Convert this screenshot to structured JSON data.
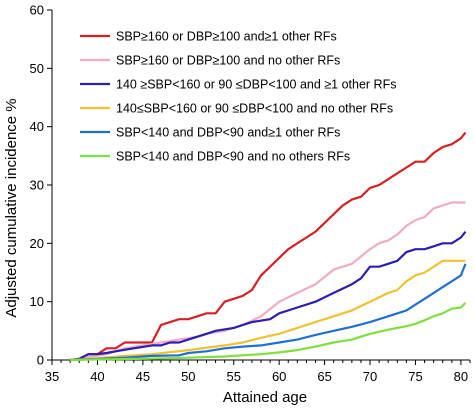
{
  "chart_data": {
    "type": "line",
    "title": "",
    "xlabel": "Attained age",
    "ylabel": "Adjusted cumulative incidence %",
    "xlim": [
      35,
      81
    ],
    "ylim": [
      0,
      60
    ],
    "x_ticks": [
      "35",
      "40",
      "45",
      "50",
      "55",
      "60",
      "65",
      "70",
      "75",
      "80"
    ],
    "y_ticks": [
      "0",
      "10",
      "20",
      "30",
      "40",
      "50",
      "60"
    ],
    "grid": false,
    "legend_position": "top-left",
    "series": [
      {
        "name": "SBP≥160 or DBP≥100 and≥1 other RFs",
        "color": "#d62020",
        "points": [
          [
            37,
            0
          ],
          [
            38,
            0.2
          ],
          [
            39,
            1
          ],
          [
            40,
            1
          ],
          [
            41,
            2
          ],
          [
            42,
            2
          ],
          [
            43,
            3
          ],
          [
            45,
            3
          ],
          [
            46,
            3
          ],
          [
            47,
            6
          ],
          [
            48,
            6.5
          ],
          [
            49,
            7
          ],
          [
            50,
            7
          ],
          [
            51,
            7.5
          ],
          [
            52,
            8
          ],
          [
            53,
            8
          ],
          [
            54,
            10
          ],
          [
            55,
            10.5
          ],
          [
            56,
            11
          ],
          [
            57,
            12
          ],
          [
            58,
            14.5
          ],
          [
            59,
            16
          ],
          [
            60,
            17.5
          ],
          [
            61,
            19
          ],
          [
            62,
            20
          ],
          [
            63,
            21
          ],
          [
            64,
            22
          ],
          [
            65,
            23.5
          ],
          [
            66,
            25
          ],
          [
            67,
            26.5
          ],
          [
            68,
            27.5
          ],
          [
            69,
            28
          ],
          [
            70,
            29.5
          ],
          [
            71,
            30
          ],
          [
            72,
            31
          ],
          [
            73,
            32
          ],
          [
            74,
            33
          ],
          [
            75,
            34
          ],
          [
            76,
            34
          ],
          [
            77,
            35.5
          ],
          [
            78,
            36.5
          ],
          [
            79,
            37
          ],
          [
            80,
            38
          ],
          [
            80.5,
            39
          ]
        ]
      },
      {
        "name": "SBP≥160 or DBP≥100 and no other RFs",
        "color": "#f4a9c4",
        "points": [
          [
            37,
            0
          ],
          [
            39,
            0.5
          ],
          [
            41,
            1
          ],
          [
            43,
            2
          ],
          [
            45,
            2.5
          ],
          [
            47,
            3
          ],
          [
            49,
            3.5
          ],
          [
            51,
            4
          ],
          [
            52,
            4.5
          ],
          [
            54,
            5
          ],
          [
            56,
            6
          ],
          [
            58,
            7.5
          ],
          [
            60,
            10
          ],
          [
            62,
            11.5
          ],
          [
            64,
            13
          ],
          [
            66,
            15.5
          ],
          [
            67,
            16
          ],
          [
            68,
            16.5
          ],
          [
            70,
            19
          ],
          [
            71,
            20
          ],
          [
            72,
            20.5
          ],
          [
            73,
            21.5
          ],
          [
            74,
            23
          ],
          [
            75,
            24
          ],
          [
            76,
            24.5
          ],
          [
            77,
            26
          ],
          [
            78,
            26.5
          ],
          [
            79,
            27
          ],
          [
            80,
            27
          ],
          [
            80.5,
            27
          ]
        ]
      },
      {
        "name": "140 ≥SBP<160 or 90 ≤DBP<100 and ≥1 other RFs",
        "color": "#2a1fb5",
        "points": [
          [
            37,
            0
          ],
          [
            38,
            0.2
          ],
          [
            39,
            1
          ],
          [
            40,
            1
          ],
          [
            41,
            1.2
          ],
          [
            42,
            1.5
          ],
          [
            44,
            2
          ],
          [
            46,
            2.5
          ],
          [
            47,
            2.5
          ],
          [
            48,
            3
          ],
          [
            49,
            3
          ],
          [
            50,
            3.5
          ],
          [
            51,
            4
          ],
          [
            52,
            4.5
          ],
          [
            53,
            5
          ],
          [
            55,
            5.5
          ],
          [
            57,
            6.5
          ],
          [
            59,
            7
          ],
          [
            60,
            8
          ],
          [
            62,
            9
          ],
          [
            64,
            10
          ],
          [
            66,
            11.5
          ],
          [
            68,
            13
          ],
          [
            69,
            14
          ],
          [
            70,
            16
          ],
          [
            71,
            16
          ],
          [
            72,
            16.5
          ],
          [
            73,
            17
          ],
          [
            74,
            18.5
          ],
          [
            75,
            19
          ],
          [
            76,
            19
          ],
          [
            77,
            19.5
          ],
          [
            78,
            20
          ],
          [
            79,
            20
          ],
          [
            80,
            21
          ],
          [
            80.5,
            22
          ]
        ]
      },
      {
        "name": "140≤SBP<160 or 90 ≤DBP<100 and no other RFs",
        "color": "#f2c12e",
        "points": [
          [
            37,
            0
          ],
          [
            40,
            0.3
          ],
          [
            43,
            0.7
          ],
          [
            46,
            1
          ],
          [
            50,
            1.7
          ],
          [
            54,
            2.5
          ],
          [
            56,
            3
          ],
          [
            58,
            3.8
          ],
          [
            60,
            4.5
          ],
          [
            62,
            5.5
          ],
          [
            64,
            6.5
          ],
          [
            66,
            7.5
          ],
          [
            68,
            8.5
          ],
          [
            70,
            10
          ],
          [
            72,
            11.5
          ],
          [
            73,
            12
          ],
          [
            74,
            13.5
          ],
          [
            75,
            14.5
          ],
          [
            76,
            15
          ],
          [
            77,
            16
          ],
          [
            78,
            17
          ],
          [
            79,
            17
          ],
          [
            80,
            17
          ],
          [
            80.5,
            17
          ]
        ]
      },
      {
        "name": "SBP<140 and DBP<90 and≥1 other RFs",
        "color": "#1f6fd8",
        "points": [
          [
            37,
            0
          ],
          [
            40,
            0.2
          ],
          [
            43,
            0.4
          ],
          [
            46,
            0.7
          ],
          [
            49,
            0.8
          ],
          [
            50,
            1.2
          ],
          [
            52,
            1.5
          ],
          [
            54,
            2
          ],
          [
            56,
            2.3
          ],
          [
            58,
            2.5
          ],
          [
            60,
            3
          ],
          [
            62,
            3.5
          ],
          [
            64,
            4.3
          ],
          [
            66,
            5
          ],
          [
            68,
            5.7
          ],
          [
            70,
            6.5
          ],
          [
            72,
            7.5
          ],
          [
            74,
            8.5
          ],
          [
            75,
            9.5
          ],
          [
            76,
            10.5
          ],
          [
            77,
            11.5
          ],
          [
            78,
            12.5
          ],
          [
            79,
            13.5
          ],
          [
            80,
            14.5
          ],
          [
            80.5,
            16.5
          ]
        ]
      },
      {
        "name": "SBP<140 and DBP<90 and no others RFs",
        "color": "#7ee03a",
        "points": [
          [
            37,
            0
          ],
          [
            40,
            0.1
          ],
          [
            45,
            0.2
          ],
          [
            50,
            0.4
          ],
          [
            54,
            0.6
          ],
          [
            56,
            0.8
          ],
          [
            58,
            1
          ],
          [
            60,
            1.3
          ],
          [
            62,
            1.7
          ],
          [
            64,
            2.3
          ],
          [
            66,
            3
          ],
          [
            68,
            3.5
          ],
          [
            70,
            4.5
          ],
          [
            72,
            5.2
          ],
          [
            74,
            5.8
          ],
          [
            75,
            6.2
          ],
          [
            76,
            6.8
          ],
          [
            77,
            7.5
          ],
          [
            78,
            8
          ],
          [
            79,
            8.8
          ],
          [
            80,
            9
          ],
          [
            80.5,
            9.8
          ]
        ]
      }
    ]
  }
}
